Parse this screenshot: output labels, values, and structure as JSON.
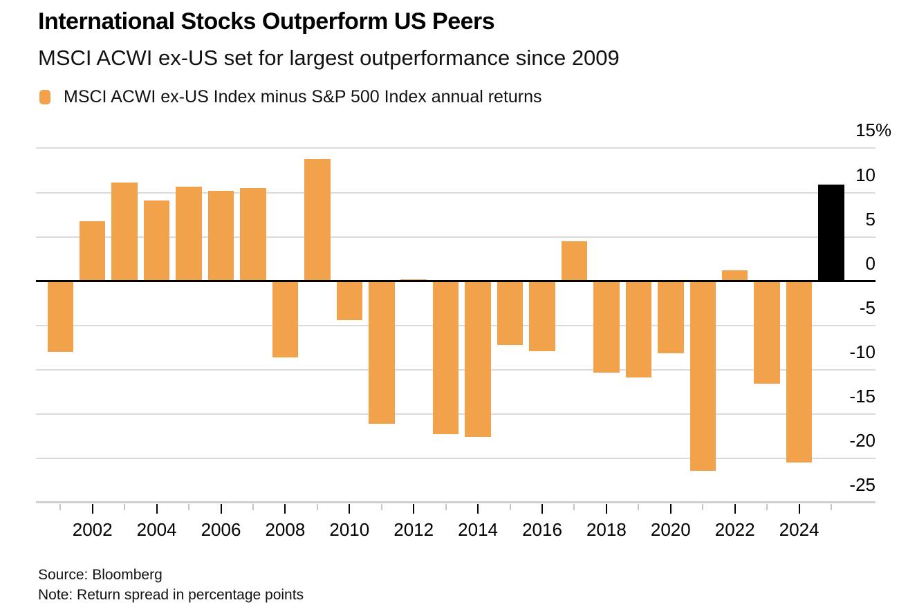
{
  "header": {
    "title": "International Stocks Outperform US Peers",
    "subtitle": "MSCI ACWI ex-US set for largest outperformance since 2009"
  },
  "legend": {
    "label": "MSCI ACWI ex-US Index minus S&P 500 Index annual returns",
    "swatch_color": "#F2A24A"
  },
  "footer": {
    "source": "Source: Bloomberg",
    "note": "Note: Return spread in percentage points"
  },
  "chart_data": {
    "type": "bar",
    "title": "International Stocks Outperform US Peers",
    "subtitle": "MSCI ACWI ex-US set for largest outperformance since 2009",
    "series_name": "MSCI ACWI ex-US Index minus S&P 500 Index annual returns",
    "unit": "percentage points",
    "x": [
      2001,
      2002,
      2003,
      2004,
      2005,
      2006,
      2007,
      2008,
      2009,
      2010,
      2011,
      2012,
      2013,
      2014,
      2015,
      2016,
      2017,
      2018,
      2019,
      2020,
      2021,
      2022,
      2023,
      2024,
      2025
    ],
    "values": [
      -8.0,
      6.8,
      11.1,
      9.1,
      10.7,
      10.2,
      10.5,
      -8.6,
      13.8,
      -4.4,
      -16.1,
      0.2,
      -17.3,
      -17.6,
      -7.2,
      -7.9,
      4.5,
      -10.3,
      -10.9,
      -8.1,
      -21.4,
      1.2,
      -11.6,
      -20.5,
      10.9
    ],
    "highlight_year": 2025,
    "highlight_color": "#000000",
    "bar_color": "#F2A24A",
    "ylim": [
      -25,
      15
    ],
    "y_ticks": [
      15,
      10,
      5,
      0,
      -5,
      -10,
      -15,
      -20,
      -25
    ],
    "y_tick_labels": [
      "15%",
      "10",
      "5",
      "0",
      "-5",
      "-10",
      "-15",
      "-20",
      "-25"
    ],
    "x_tick_labels": [
      "2002",
      "2004",
      "2006",
      "2008",
      "2010",
      "2012",
      "2014",
      "2016",
      "2018",
      "2020",
      "2022",
      "2024"
    ],
    "grid": "horizontal",
    "axis_side": "right",
    "legend_position": "top-left"
  }
}
